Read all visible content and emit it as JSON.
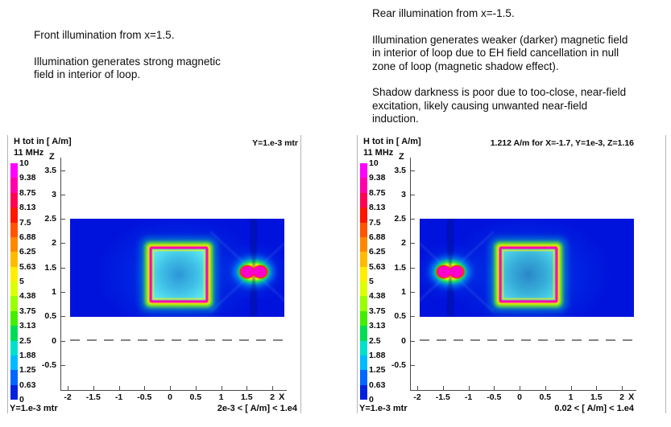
{
  "notes": {
    "left": [
      "Front illumination from x=1.5.",
      "Illumination generates strong magnetic\nfield in interior of loop."
    ],
    "right": [
      "Rear illumination from x=-1.5.",
      "Illumination generates weaker (darker) magnetic field\nin interior of loop due to EH field cancellation in null\nzone of loop (magnetic shadow effect).",
      "Shadow darkness is poor due to too-close, near-field\nexcitation, likely causing unwanted near-field\ninduction."
    ]
  },
  "scale": {
    "labels": [
      "10",
      "9.38",
      "8.75",
      "8.13",
      "7.5",
      "6.88",
      "6.25",
      "5.63",
      "5",
      "4.38",
      "3.75",
      "3.13",
      "2.5",
      "1.88",
      "1.25",
      "0.63",
      "0"
    ],
    "colors": [
      "#ff00ff",
      "#ff00aa",
      "#ff0055",
      "#ff1500",
      "#ff5500",
      "#ff8800",
      "#ffbb00",
      "#ffee00",
      "#ddff00",
      "#99ff00",
      "#44ee00",
      "#00dd55",
      "#00e0cc",
      "#00bbff",
      "#0066ff",
      "#0022dd"
    ]
  },
  "axes": {
    "z_label": "Z",
    "x_label": "X",
    "z_ticks": [
      "3.5",
      "3",
      "2.5",
      "2",
      "1.5",
      "1",
      "0.5",
      "0",
      "-0.5"
    ],
    "x_ticks": [
      "-2",
      "-1.5",
      "-1",
      "-0.5",
      "0",
      "0.5",
      "1",
      "1.5",
      "2"
    ]
  },
  "plots": [
    {
      "title": "H tot in [ A/m]",
      "freq": "11 MHz",
      "top_right": "Y=1.e-3 mtr",
      "bottom_left": "Y=1.e-3 mtr",
      "bottom_right": "2e-3 < [ A/m] < 1.e4",
      "source_side": "right"
    },
    {
      "title": "H tot in [ A/m]",
      "freq": "11 MHz",
      "top_right": "1.212  A/m for X=-1.7, Y=1e-3, Z=1.16",
      "bottom_left": "Y=1.e-3 mtr",
      "bottom_right": "0.02 < [ A/m] < 1.e4",
      "source_side": "left"
    }
  ],
  "chart_data": [
    {
      "type": "heatmap",
      "title": "H tot in [ A/m]",
      "frequency": "11 MHz",
      "slice_plane": "Y=1.e-3 mtr",
      "xlabel": "X",
      "ylabel": "Z",
      "x_ticks": [
        -2,
        -1.5,
        -1,
        -0.5,
        0,
        0.5,
        1,
        1.5,
        2
      ],
      "z_ticks": [
        3.5,
        3,
        2.5,
        2,
        1.5,
        1,
        0.5,
        0,
        -0.5
      ],
      "colorbar": {
        "min": 0,
        "max": 10,
        "tick_labels": [
          10,
          9.38,
          8.75,
          8.13,
          7.5,
          6.88,
          6.25,
          5.63,
          5,
          4.38,
          3.75,
          3.13,
          2.5,
          1.88,
          1.25,
          0.63,
          0
        ]
      },
      "value_range_note": "2e-3 < [ A/m] < 1.e4",
      "field_region": {
        "x": [
          -1.95,
          2.25
        ],
        "z": [
          0.5,
          2.5
        ]
      },
      "loop": {
        "x": [
          -0.4,
          0.7
        ],
        "z": [
          0.8,
          1.9
        ]
      },
      "source": {
        "x": 1.5,
        "z": 1.5
      },
      "ground_dash_z": 0
    },
    {
      "type": "heatmap",
      "title": "H tot in [ A/m]",
      "frequency": "11 MHz",
      "slice_plane": "Y=1.e-3 mtr",
      "annotation": "1.212  A/m for X=-1.7, Y=1e-3, Z=1.16",
      "xlabel": "X",
      "ylabel": "Z",
      "x_ticks": [
        -2,
        -1.5,
        -1,
        -0.5,
        0,
        0.5,
        1,
        1.5,
        2
      ],
      "z_ticks": [
        3.5,
        3,
        2.5,
        2,
        1.5,
        1,
        0.5,
        0,
        -0.5
      ],
      "colorbar": {
        "min": 0,
        "max": 10,
        "tick_labels": [
          10,
          9.38,
          8.75,
          8.13,
          7.5,
          6.88,
          6.25,
          5.63,
          5,
          4.38,
          3.75,
          3.13,
          2.5,
          1.88,
          1.25,
          0.63,
          0
        ]
      },
      "value_range_note": "0.02 < [ A/m] < 1.e4",
      "field_region": {
        "x": [
          -1.95,
          2.25
        ],
        "z": [
          0.5,
          2.5
        ]
      },
      "loop": {
        "x": [
          -0.4,
          0.7
        ],
        "z": [
          0.8,
          1.9
        ]
      },
      "source": {
        "x": -1.5,
        "z": 1.5
      },
      "ground_dash_z": 0
    }
  ]
}
